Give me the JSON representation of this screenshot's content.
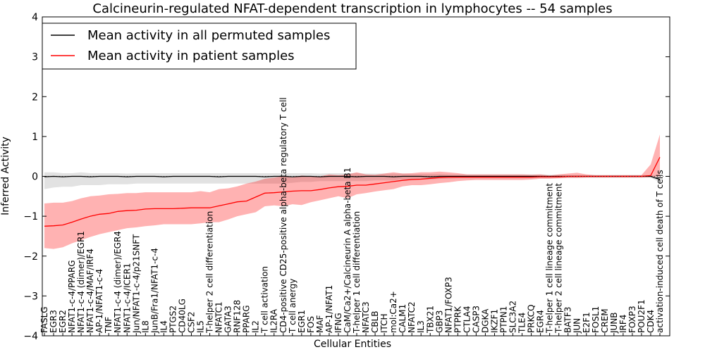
{
  "chart_data": {
    "type": "line",
    "title": "Calcineurin-regulated NFAT-dependent transcription in lymphocytes -- 54 samples",
    "xlabel": "Cellular Entities",
    "ylabel": "Inferred Activity",
    "ylim": [
      -4,
      4
    ],
    "yticks": [
      -4,
      -3,
      -2,
      -1,
      0,
      1,
      2,
      3,
      4
    ],
    "legend": {
      "position": "top-left",
      "entries": [
        {
          "label": "Mean activity in all permuted samples",
          "color": "#000000"
        },
        {
          "label": "Mean activity in patient samples",
          "color": "#ff0000"
        }
      ]
    },
    "categories": [
      "FASLG",
      "EGR3",
      "EGR2",
      "NFAT1-c-4/PPARG",
      "NFAT1-c-4 (dimer)/EGR1",
      "NFAT1-c-4/MAF/IRF4",
      "AP-1/NFAT1-c-4",
      "TNF",
      "NFAT1-c-4 (dimer)/EGR4",
      "NFAT1-c-4/ICER1",
      "Jun/NFAT1-c-4/p21SNFT",
      "IL8",
      "JunB/Fra1/NFAT1-c-4",
      "IL4",
      "PTGS2",
      "CD40LG",
      "CSF2",
      "IL5",
      "T-helper 2 cell differentiation",
      "NFATC1",
      "GATA3",
      "RNF128",
      "PPARG",
      "IL2",
      "T cell activation",
      "IL2RA",
      "CD4-positive CD25-positive alpha-beta regulatory T cell",
      "T cell anergy",
      "EGR1",
      "FOS",
      "MAF",
      "AP-1/NFAT1",
      "IFNG",
      "CaM/Ca2+/Calcineurin A alpha-beta B1",
      "T-helper 1 cell differentiation",
      "NFATC3",
      "CBLB",
      "ITCH",
      "mol:Ca2+",
      "CALM1",
      "NFATC2",
      "IL3",
      "TBX21",
      "GBP3",
      "NFAT1/FOXP3",
      "PTPRK",
      "CTLA4",
      "CASP3",
      "DGKA",
      "IKZF1",
      "PTPN1",
      "SLC3A2",
      "TLE4",
      "PRKCQ",
      "EGR4",
      "T-helper 1 cell lineage commitment",
      "T-helper 2 cell lineage commitment",
      "BATF3",
      "JUN",
      "E2F1",
      "FOSL1",
      "CREM",
      "JUNB",
      "IRF4",
      "FOXP3",
      "POU2F1",
      "CDK4",
      "activation-induced cell death of T cells"
    ],
    "series": [
      {
        "name": "Mean activity in patient samples",
        "color": "#ff0000",
        "values": [
          -1.25,
          -1.24,
          -1.22,
          -1.15,
          -1.07,
          -1.0,
          -0.95,
          -0.93,
          -0.88,
          -0.86,
          -0.85,
          -0.82,
          -0.81,
          -0.81,
          -0.81,
          -0.8,
          -0.79,
          -0.79,
          -0.79,
          -0.74,
          -0.69,
          -0.64,
          -0.62,
          -0.52,
          -0.42,
          -0.41,
          -0.39,
          -0.37,
          -0.36,
          -0.36,
          -0.33,
          -0.29,
          -0.26,
          -0.25,
          -0.22,
          -0.22,
          -0.19,
          -0.16,
          -0.13,
          -0.1,
          -0.08,
          -0.07,
          -0.05,
          -0.03,
          -0.02,
          -0.02,
          -0.02,
          -0.02,
          -0.02,
          -0.02,
          -0.02,
          -0.02,
          -0.02,
          -0.02,
          -0.01,
          -0.01,
          -0.01,
          0.0,
          0.0,
          0.0,
          0.0,
          0.0,
          0.0,
          0.0,
          0.0,
          0.0,
          0.02,
          0.48
        ],
        "upper": [
          -0.68,
          -0.66,
          -0.66,
          -0.62,
          -0.55,
          -0.5,
          -0.48,
          -0.45,
          -0.44,
          -0.42,
          -0.42,
          -0.4,
          -0.4,
          -0.4,
          -0.4,
          -0.4,
          -0.4,
          -0.37,
          -0.4,
          -0.32,
          -0.3,
          -0.25,
          -0.18,
          -0.13,
          -0.06,
          -0.03,
          0.0,
          -0.03,
          0.02,
          0.0,
          0.0,
          0.05,
          0.03,
          0.05,
          0.1,
          0.05,
          0.04,
          0.07,
          0.1,
          0.07,
          0.08,
          0.1,
          0.1,
          0.12,
          0.1,
          0.08,
          0.05,
          0.05,
          0.05,
          0.05,
          0.05,
          0.05,
          0.05,
          0.04,
          0.05,
          0.02,
          0.05,
          0.07,
          0.09,
          0.05,
          0.03,
          0.03,
          0.03,
          0.03,
          0.03,
          0.03,
          0.3,
          1.05
        ],
        "lower": [
          -1.8,
          -1.82,
          -1.78,
          -1.68,
          -1.6,
          -1.52,
          -1.45,
          -1.4,
          -1.35,
          -1.3,
          -1.28,
          -1.25,
          -1.23,
          -1.2,
          -1.2,
          -1.2,
          -1.2,
          -1.18,
          -1.15,
          -1.15,
          -1.08,
          -1.0,
          -0.95,
          -0.9,
          -0.75,
          -0.73,
          -0.75,
          -0.7,
          -0.72,
          -0.65,
          -0.6,
          -0.55,
          -0.5,
          -0.55,
          -0.45,
          -0.42,
          -0.38,
          -0.35,
          -0.32,
          -0.25,
          -0.22,
          -0.22,
          -0.2,
          -0.17,
          -0.15,
          -0.12,
          -0.1,
          -0.09,
          -0.09,
          -0.09,
          -0.09,
          -0.09,
          -0.09,
          -0.08,
          -0.06,
          -0.06,
          -0.05,
          -0.04,
          -0.04,
          -0.03,
          -0.03,
          -0.03,
          -0.03,
          -0.03,
          -0.03,
          -0.03,
          -0.02,
          0.0
        ]
      },
      {
        "name": "Mean activity in all permuted samples",
        "color": "#000000",
        "values": [
          -0.01,
          0.0,
          -0.01,
          0.0,
          0.0,
          -0.01,
          0.0,
          0.0,
          0.0,
          -0.01,
          0.0,
          0.0,
          0.0,
          -0.01,
          0.0,
          0.0,
          0.0,
          0.0,
          0.0,
          -0.01,
          0.0,
          0.0,
          0.0,
          0.0,
          -0.01,
          0.0,
          0.0,
          -0.01,
          0.0,
          0.0,
          -0.01,
          0.0,
          0.0,
          0.0,
          -0.01,
          0.0,
          0.0,
          0.0,
          -0.01,
          0.0,
          0.0,
          0.0,
          -0.01,
          0.0,
          0.0,
          0.0,
          0.0,
          0.0,
          0.0,
          0.0,
          0.0,
          0.0,
          0.0,
          0.0,
          0.0,
          0.0,
          0.0,
          0.0,
          0.0,
          0.0,
          0.0,
          0.0,
          0.0,
          0.0,
          0.0,
          0.0,
          0.0,
          -0.08
        ],
        "upper": [
          0.1,
          0.1,
          0.08,
          0.08,
          0.1,
          0.08,
          0.08,
          0.08,
          0.08,
          0.07,
          0.08,
          0.08,
          0.08,
          0.08,
          0.08,
          0.08,
          0.08,
          0.08,
          0.08,
          0.08,
          0.08,
          0.08,
          0.08,
          0.08,
          0.08,
          0.08,
          0.08,
          0.08,
          0.08,
          0.08,
          0.07,
          0.08,
          0.08,
          0.08,
          0.08,
          0.07,
          0.07,
          0.07,
          0.07,
          0.07,
          0.06,
          0.06,
          0.06,
          0.06,
          0.05,
          0.05,
          0.05,
          0.05,
          0.05,
          0.05,
          0.05,
          0.05,
          0.05,
          0.05,
          0.05,
          0.04,
          0.04,
          0.03,
          0.03,
          0.03,
          0.03,
          0.03,
          0.03,
          0.03,
          0.03,
          0.03,
          0.03,
          0.0
        ],
        "lower": [
          -0.32,
          -0.28,
          -0.26,
          -0.26,
          -0.22,
          -0.22,
          -0.22,
          -0.2,
          -0.2,
          -0.2,
          -0.18,
          -0.18,
          -0.18,
          -0.18,
          -0.18,
          -0.18,
          -0.18,
          -0.18,
          -0.18,
          -0.18,
          -0.18,
          -0.18,
          -0.18,
          -0.18,
          -0.18,
          -0.18,
          -0.18,
          -0.16,
          -0.14,
          -0.14,
          -0.12,
          -0.12,
          -0.12,
          -0.12,
          -0.12,
          -0.12,
          -0.1,
          -0.1,
          -0.1,
          -0.08,
          -0.08,
          -0.08,
          -0.08,
          -0.06,
          -0.06,
          -0.05,
          -0.05,
          -0.05,
          -0.05,
          -0.05,
          -0.05,
          -0.05,
          -0.05,
          -0.05,
          -0.04,
          -0.04,
          -0.04,
          -0.03,
          -0.03,
          -0.03,
          -0.03,
          -0.03,
          -0.03,
          -0.03,
          -0.03,
          -0.03,
          -0.03,
          -0.15
        ]
      }
    ]
  }
}
